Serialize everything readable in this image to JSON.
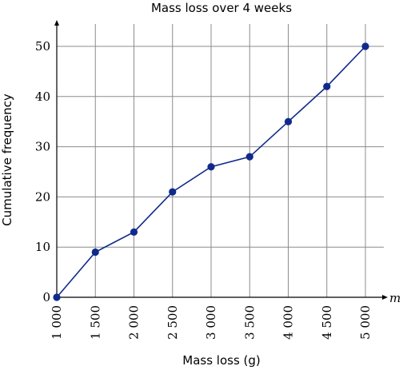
{
  "chart_data": {
    "type": "line",
    "title": "Mass loss over 4 weeks",
    "xlabel": "Mass loss (g)",
    "ylabel": "Cumulative frequency",
    "x_axis_symbol": "m",
    "x": [
      1000,
      1500,
      2000,
      2500,
      3000,
      3500,
      4000,
      4500,
      5000
    ],
    "x_tick_labels": [
      "1 000",
      "1 500",
      "2 000",
      "2 500",
      "3 000",
      "3 500",
      "4 000",
      "4 500",
      "5 000"
    ],
    "y_ticks": [
      0,
      10,
      20,
      30,
      40,
      50
    ],
    "series": [
      {
        "values": [
          0,
          9,
          13,
          21,
          26,
          28,
          35,
          42,
          50
        ]
      }
    ],
    "xlim": [
      1000,
      5000
    ],
    "ylim": [
      0,
      55
    ],
    "grid": true,
    "colors": {
      "series": "#102a8c",
      "grid": "#8c8c8c"
    }
  }
}
